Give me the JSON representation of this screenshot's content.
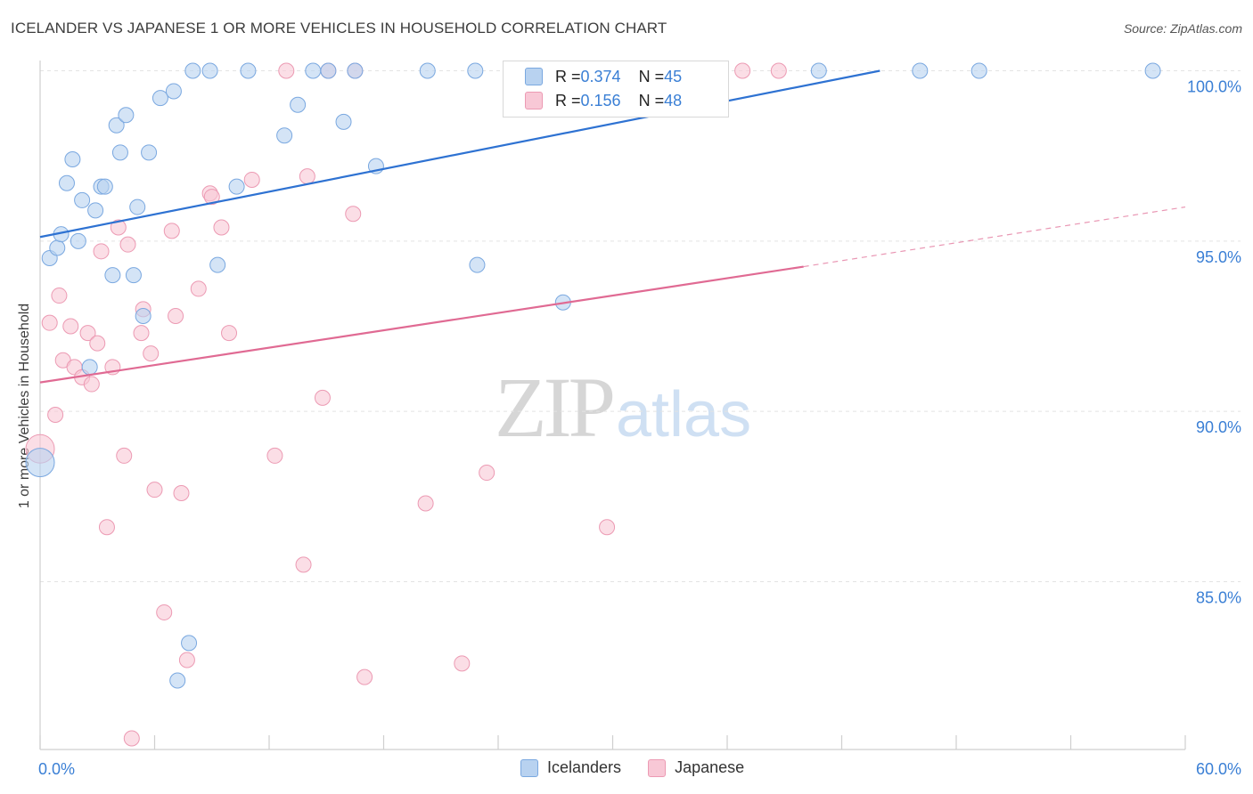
{
  "title": "ICELANDER VS JAPANESE 1 OR MORE VEHICLES IN HOUSEHOLD CORRELATION CHART",
  "source": "Source: ZipAtlas.com",
  "watermark": {
    "part1": "ZIP",
    "part2": "atlas"
  },
  "legend_top": [
    {
      "r_label": "R = ",
      "r_value": "0.374",
      "n_label": "N = ",
      "n_value": "45"
    },
    {
      "r_label": "R = ",
      "r_value": "0.156",
      "n_label": "N = ",
      "n_value": "48"
    }
  ],
  "colors": {
    "blue_fill": "#b8d2f0",
    "blue_stroke": "#7aa8e0",
    "blue_line": "#2e72d2",
    "pink_fill": "#f8c8d6",
    "pink_stroke": "#ec9ab3",
    "pink_line": "#e06a93",
    "grid": "#e3e3e3",
    "axis_text": "#3a7fd5"
  },
  "chart_data": {
    "type": "scatter",
    "title": "ICELANDER VS JAPANESE 1 OR MORE VEHICLES IN HOUSEHOLD CORRELATION CHART",
    "xlabel": "",
    "ylabel": "1 or more Vehicles in Household",
    "xlim": [
      0,
      60
    ],
    "ylim": [
      80,
      100.5
    ],
    "x_tick_labels": [
      "0.0%",
      "60.0%"
    ],
    "y_ticks": [
      85,
      90,
      95,
      100
    ],
    "y_tick_labels": [
      "85.0%",
      "90.0%",
      "95.0%",
      "100.0%"
    ],
    "grid": true,
    "legend_position": "top-center",
    "series": [
      {
        "name": "Icelanders",
        "r": 0.374,
        "n": 45,
        "trend": {
          "x": [
            0,
            44
          ],
          "y": [
            95.12,
            100.0
          ]
        },
        "points": [
          {
            "x": 0.0,
            "y": 88.5,
            "big": true
          },
          {
            "x": 0.5,
            "y": 94.5
          },
          {
            "x": 0.9,
            "y": 94.8
          },
          {
            "x": 1.1,
            "y": 95.2
          },
          {
            "x": 1.4,
            "y": 96.7
          },
          {
            "x": 1.7,
            "y": 97.4
          },
          {
            "x": 2.0,
            "y": 95.0
          },
          {
            "x": 2.2,
            "y": 96.2
          },
          {
            "x": 2.6,
            "y": 91.3
          },
          {
            "x": 2.9,
            "y": 95.9
          },
          {
            "x": 3.2,
            "y": 96.6
          },
          {
            "x": 3.4,
            "y": 96.6
          },
          {
            "x": 3.8,
            "y": 94.0
          },
          {
            "x": 4.0,
            "y": 98.4
          },
          {
            "x": 4.2,
            "y": 97.6
          },
          {
            "x": 4.5,
            "y": 98.7
          },
          {
            "x": 4.9,
            "y": 94.0
          },
          {
            "x": 5.1,
            "y": 96.0
          },
          {
            "x": 5.4,
            "y": 92.8
          },
          {
            "x": 5.7,
            "y": 97.6
          },
          {
            "x": 6.3,
            "y": 99.2
          },
          {
            "x": 7.0,
            "y": 99.4
          },
          {
            "x": 7.2,
            "y": 82.1
          },
          {
            "x": 7.8,
            "y": 83.2
          },
          {
            "x": 8.0,
            "y": 100.0
          },
          {
            "x": 8.9,
            "y": 100.0
          },
          {
            "x": 9.3,
            "y": 94.3
          },
          {
            "x": 10.3,
            "y": 96.6
          },
          {
            "x": 10.9,
            "y": 100.0
          },
          {
            "x": 12.8,
            "y": 98.1
          },
          {
            "x": 13.5,
            "y": 99.0
          },
          {
            "x": 14.3,
            "y": 100.0
          },
          {
            "x": 15.1,
            "y": 100.0
          },
          {
            "x": 15.9,
            "y": 98.5
          },
          {
            "x": 16.5,
            "y": 100.0
          },
          {
            "x": 17.6,
            "y": 97.2
          },
          {
            "x": 20.3,
            "y": 100.0
          },
          {
            "x": 22.8,
            "y": 100.0
          },
          {
            "x": 22.9,
            "y": 94.3
          },
          {
            "x": 27.4,
            "y": 93.2
          },
          {
            "x": 31.5,
            "y": 100.0
          },
          {
            "x": 40.8,
            "y": 100.0
          },
          {
            "x": 46.1,
            "y": 100.0
          },
          {
            "x": 49.2,
            "y": 100.0
          },
          {
            "x": 58.3,
            "y": 100.0
          }
        ]
      },
      {
        "name": "Japanese",
        "r": 0.156,
        "n": 48,
        "trend": {
          "x": [
            0,
            40
          ],
          "y": [
            90.85,
            94.25
          ]
        },
        "trend_extension": {
          "x": [
            40,
            60
          ],
          "y": [
            94.25,
            96.0
          ]
        },
        "points": [
          {
            "x": 0.0,
            "y": 88.9,
            "big": true
          },
          {
            "x": 0.5,
            "y": 92.6
          },
          {
            "x": 0.8,
            "y": 89.9
          },
          {
            "x": 1.0,
            "y": 93.4
          },
          {
            "x": 1.2,
            "y": 91.5
          },
          {
            "x": 1.6,
            "y": 92.5
          },
          {
            "x": 1.8,
            "y": 91.3
          },
          {
            "x": 2.2,
            "y": 91.0
          },
          {
            "x": 2.5,
            "y": 92.3
          },
          {
            "x": 2.7,
            "y": 90.8
          },
          {
            "x": 3.0,
            "y": 92.0
          },
          {
            "x": 3.2,
            "y": 94.7
          },
          {
            "x": 3.5,
            "y": 86.6
          },
          {
            "x": 3.8,
            "y": 91.3
          },
          {
            "x": 4.1,
            "y": 95.4
          },
          {
            "x": 4.4,
            "y": 88.7
          },
          {
            "x": 4.6,
            "y": 94.9
          },
          {
            "x": 4.8,
            "y": 80.4
          },
          {
            "x": 5.3,
            "y": 92.3
          },
          {
            "x": 5.4,
            "y": 93.0
          },
          {
            "x": 5.8,
            "y": 91.7
          },
          {
            "x": 6.0,
            "y": 87.7
          },
          {
            "x": 6.5,
            "y": 84.1
          },
          {
            "x": 6.9,
            "y": 95.3
          },
          {
            "x": 7.1,
            "y": 92.8
          },
          {
            "x": 7.4,
            "y": 87.6
          },
          {
            "x": 7.7,
            "y": 82.7
          },
          {
            "x": 8.3,
            "y": 93.6
          },
          {
            "x": 8.9,
            "y": 96.4
          },
          {
            "x": 9.0,
            "y": 96.3
          },
          {
            "x": 9.5,
            "y": 95.4
          },
          {
            "x": 9.9,
            "y": 92.3
          },
          {
            "x": 11.1,
            "y": 96.8
          },
          {
            "x": 12.3,
            "y": 88.7
          },
          {
            "x": 12.9,
            "y": 100.0
          },
          {
            "x": 13.8,
            "y": 85.5
          },
          {
            "x": 14.0,
            "y": 96.9
          },
          {
            "x": 14.8,
            "y": 90.4
          },
          {
            "x": 15.1,
            "y": 100.0
          },
          {
            "x": 16.4,
            "y": 95.8
          },
          {
            "x": 16.5,
            "y": 100.0
          },
          {
            "x": 17.0,
            "y": 82.2
          },
          {
            "x": 20.2,
            "y": 87.3
          },
          {
            "x": 22.1,
            "y": 82.6
          },
          {
            "x": 23.4,
            "y": 88.2
          },
          {
            "x": 29.7,
            "y": 86.6
          },
          {
            "x": 36.8,
            "y": 100.0
          },
          {
            "x": 38.7,
            "y": 100.0
          }
        ]
      }
    ]
  }
}
